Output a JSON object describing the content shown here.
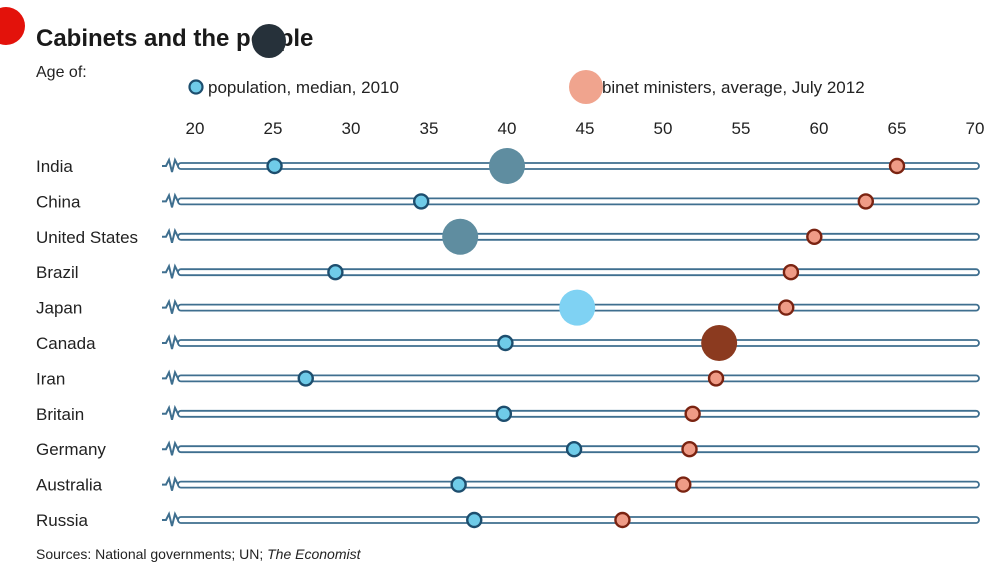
{
  "brand": {
    "accent": "#e3120b"
  },
  "chart_data": {
    "type": "dot-range",
    "title": "Cabinets and the people",
    "subtitle": "Age of:",
    "xlim": [
      18,
      71
    ],
    "xticks": [
      20,
      25,
      30,
      35,
      40,
      45,
      50,
      55,
      60,
      65,
      70
    ],
    "categories": [
      "India",
      "China",
      "United States",
      "Brazil",
      "Japan",
      "Canada",
      "Iran",
      "Britain",
      "Germany",
      "Australia",
      "Russia"
    ],
    "series": [
      {
        "name": "population, median, 2010",
        "color": "#6fcbe8",
        "stroke": "#1d4e6e",
        "values": [
          25.1,
          34.5,
          37.0,
          29.0,
          44.7,
          39.9,
          27.1,
          39.8,
          44.3,
          36.9,
          37.9
        ]
      },
      {
        "name": "cabinet ministers, average, July 2012",
        "color": "#ef9b86",
        "stroke": "#7a2311",
        "values": [
          65.0,
          63.0,
          59.7,
          58.2,
          57.9,
          53.3,
          53.4,
          51.9,
          51.7,
          51.3,
          47.4
        ]
      }
    ],
    "legend_placement": "top",
    "grid": false,
    "source_prefix": "Sources: National governments; UN; ",
    "source_italic": "The Economist",
    "overlay_marks": [
      {
        "x": 40.0,
        "category": "India",
        "color": "#5f8da0"
      },
      {
        "x": 37.0,
        "category": "United States",
        "color": "#5f8da0"
      },
      {
        "x": 44.5,
        "category": "Japan",
        "color": "#7fd2f3"
      },
      {
        "x": 53.6,
        "category": "Canada",
        "color": "#8b3a1f"
      }
    ]
  }
}
